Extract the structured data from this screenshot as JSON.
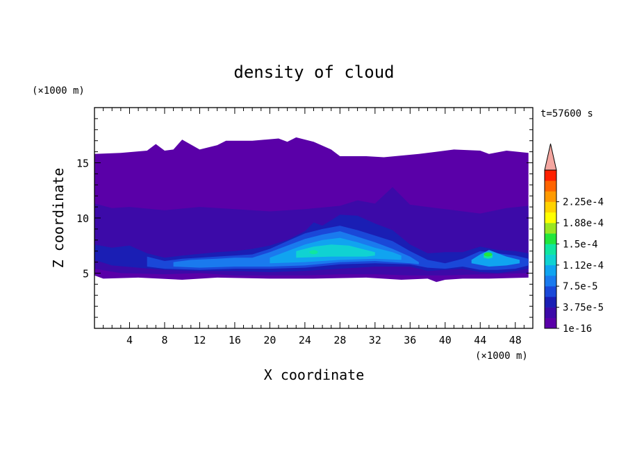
{
  "chart_data": {
    "type": "heatmap",
    "title": "density of cloud",
    "xlabel": "X coordinate",
    "ylabel": "Z coordinate",
    "x_unit": "(×1000 m)",
    "y_unit": "(×1000 m)",
    "time_label": "t=57600 s",
    "xlim": [
      0,
      50
    ],
    "ylim": [
      0,
      20
    ],
    "x_ticks": [
      4,
      8,
      12,
      16,
      20,
      24,
      28,
      32,
      36,
      40,
      44,
      48
    ],
    "y_ticks": [
      5,
      10,
      15
    ],
    "colorbar": {
      "labels": [
        "1e-16",
        "3.75e-5",
        "7.5e-5",
        "1.12e-4",
        "1.5e-4",
        "1.88e-4",
        "2.25e-4"
      ],
      "colors": [
        "#5a00a8",
        "#3c0aa8",
        "#1a1eb4",
        "#1a48d8",
        "#1a7aee",
        "#10a4f0",
        "#10d2d2",
        "#10e6a0",
        "#22e63c",
        "#9ae622",
        "#ffff00",
        "#ffd200",
        "#ff9a00",
        "#ff6400",
        "#ff2000"
      ],
      "extend_color": "#f4a6a0"
    },
    "regions": [
      {
        "level": "1e-16",
        "color": "#5a00a8",
        "top": [
          [
            0,
            15.8
          ],
          [
            3,
            15.9
          ],
          [
            6,
            16.1
          ],
          [
            7,
            16.7
          ],
          [
            8,
            16.1
          ],
          [
            9,
            16.2
          ],
          [
            10,
            17.1
          ],
          [
            12,
            16.2
          ],
          [
            14,
            16.6
          ],
          [
            15,
            17.0
          ],
          [
            18,
            17.0
          ],
          [
            21,
            17.2
          ],
          [
            22,
            16.9
          ],
          [
            23,
            17.3
          ],
          [
            25,
            16.9
          ],
          [
            27,
            16.2
          ],
          [
            28,
            15.6
          ],
          [
            31,
            15.6
          ],
          [
            33,
            15.5
          ],
          [
            37,
            15.8
          ],
          [
            39,
            16.0
          ],
          [
            41,
            16.2
          ],
          [
            44,
            16.1
          ],
          [
            45,
            15.8
          ],
          [
            47,
            16.1
          ],
          [
            49.5,
            15.9
          ]
        ],
        "bottom": [
          [
            0,
            4.8
          ],
          [
            1,
            4.5
          ],
          [
            5,
            4.6
          ],
          [
            10,
            4.4
          ],
          [
            14,
            4.6
          ],
          [
            20,
            4.5
          ],
          [
            25,
            4.5
          ],
          [
            31,
            4.6
          ],
          [
            35,
            4.4
          ],
          [
            38,
            4.5
          ],
          [
            39,
            4.2
          ],
          [
            40,
            4.4
          ],
          [
            42,
            4.5
          ],
          [
            45,
            4.5
          ],
          [
            49.5,
            4.6
          ]
        ]
      },
      {
        "level": "1.87e-5",
        "color": "#3c0aa8",
        "top": [
          [
            0,
            11.3
          ],
          [
            2,
            10.9
          ],
          [
            4,
            11.0
          ],
          [
            8,
            10.7
          ],
          [
            12,
            11.0
          ],
          [
            16,
            10.8
          ],
          [
            20,
            10.6
          ],
          [
            24,
            10.8
          ],
          [
            28,
            11.1
          ],
          [
            30,
            11.6
          ],
          [
            32,
            11.3
          ],
          [
            34,
            12.8
          ],
          [
            36,
            11.2
          ],
          [
            40,
            10.8
          ],
          [
            44,
            10.4
          ],
          [
            47,
            10.9
          ],
          [
            49.5,
            11.1
          ]
        ],
        "bottom": [
          [
            0,
            5.4
          ],
          [
            3,
            5.0
          ],
          [
            8,
            4.9
          ],
          [
            12,
            5.0
          ],
          [
            16,
            4.8
          ],
          [
            20,
            4.8
          ],
          [
            24,
            4.8
          ],
          [
            28,
            4.9
          ],
          [
            32,
            4.9
          ],
          [
            36,
            4.8
          ],
          [
            40,
            4.8
          ],
          [
            44,
            4.9
          ],
          [
            49.5,
            5.0
          ]
        ]
      },
      {
        "level": "3.75e-5",
        "color": "#1a1eb4",
        "top": [
          [
            0,
            7.6
          ],
          [
            2,
            7.3
          ],
          [
            4,
            7.5
          ],
          [
            6,
            6.8
          ],
          [
            8,
            6.4
          ],
          [
            10,
            6.6
          ],
          [
            14,
            6.9
          ],
          [
            16,
            7.0
          ],
          [
            18,
            7.2
          ],
          [
            20,
            7.5
          ],
          [
            22,
            8.0
          ],
          [
            24,
            8.8
          ],
          [
            25,
            9.6
          ],
          [
            26,
            9.3
          ],
          [
            28,
            10.3
          ],
          [
            30,
            10.2
          ],
          [
            32,
            9.5
          ],
          [
            34,
            8.9
          ],
          [
            36,
            7.6
          ],
          [
            38,
            6.8
          ],
          [
            40,
            6.9
          ],
          [
            42,
            6.9
          ],
          [
            44,
            7.4
          ],
          [
            46,
            7.1
          ],
          [
            48,
            7.0
          ],
          [
            49.5,
            6.8
          ]
        ],
        "bottom": [
          [
            0,
            6.2
          ],
          [
            2,
            5.7
          ],
          [
            5,
            5.5
          ],
          [
            8,
            5.3
          ],
          [
            12,
            5.2
          ],
          [
            16,
            5.2
          ],
          [
            20,
            5.1
          ],
          [
            24,
            5.2
          ],
          [
            28,
            5.4
          ],
          [
            32,
            5.6
          ],
          [
            36,
            5.6
          ],
          [
            38,
            5.2
          ],
          [
            40,
            5.3
          ],
          [
            42,
            5.4
          ],
          [
            44,
            5.1
          ],
          [
            46,
            5.0
          ],
          [
            48,
            5.2
          ],
          [
            49.5,
            5.4
          ]
        ]
      },
      {
        "level": "5.62e-5",
        "color": "#1a48d8",
        "top": [
          [
            6,
            6.5
          ],
          [
            8,
            6.1
          ],
          [
            10,
            6.3
          ],
          [
            14,
            6.5
          ],
          [
            16,
            6.6
          ],
          [
            18,
            6.7
          ],
          [
            20,
            7.2
          ],
          [
            22,
            7.9
          ],
          [
            24,
            8.6
          ],
          [
            26,
            9.0
          ],
          [
            28,
            9.3
          ],
          [
            30,
            8.9
          ],
          [
            32,
            8.4
          ],
          [
            34,
            7.9
          ],
          [
            36,
            7.0
          ],
          [
            38,
            6.2
          ],
          [
            40,
            5.9
          ],
          [
            42,
            6.3
          ],
          [
            44,
            7.0
          ],
          [
            46,
            6.8
          ],
          [
            48,
            6.6
          ],
          [
            49.5,
            6.3
          ]
        ],
        "bottom": [
          [
            6,
            5.6
          ],
          [
            8,
            5.4
          ],
          [
            12,
            5.3
          ],
          [
            16,
            5.4
          ],
          [
            20,
            5.4
          ],
          [
            24,
            5.5
          ],
          [
            28,
            5.8
          ],
          [
            32,
            5.9
          ],
          [
            36,
            5.8
          ],
          [
            38,
            5.5
          ],
          [
            40,
            5.4
          ],
          [
            42,
            5.6
          ],
          [
            44,
            5.3
          ],
          [
            46,
            5.3
          ],
          [
            48,
            5.4
          ],
          [
            49.5,
            5.7
          ]
        ]
      },
      {
        "level": "7.5e-5",
        "color": "#1a7aee",
        "top": [
          [
            9,
            6.0
          ],
          [
            11,
            6.2
          ],
          [
            14,
            6.3
          ],
          [
            16,
            6.4
          ],
          [
            18,
            6.4
          ],
          [
            20,
            6.9
          ],
          [
            22,
            7.5
          ],
          [
            24,
            8.1
          ],
          [
            26,
            8.5
          ],
          [
            28,
            8.8
          ],
          [
            30,
            8.3
          ],
          [
            32,
            7.8
          ],
          [
            34,
            7.2
          ],
          [
            36,
            6.5
          ],
          [
            37,
            6.0
          ]
        ],
        "bottom": [
          [
            9,
            5.6
          ],
          [
            12,
            5.5
          ],
          [
            16,
            5.6
          ],
          [
            20,
            5.6
          ],
          [
            24,
            5.7
          ],
          [
            28,
            6.0
          ],
          [
            32,
            6.1
          ],
          [
            36,
            5.9
          ],
          [
            37,
            5.8
          ]
        ]
      },
      {
        "level": "9.37e-5",
        "color": "#10a4f0",
        "top": [
          [
            20,
            6.4
          ],
          [
            22,
            7.0
          ],
          [
            24,
            7.6
          ],
          [
            26,
            8.0
          ],
          [
            28,
            8.2
          ],
          [
            30,
            7.8
          ],
          [
            32,
            7.3
          ],
          [
            34,
            6.9
          ],
          [
            35,
            6.6
          ]
        ],
        "bottom": [
          [
            20,
            5.9
          ],
          [
            24,
            6.0
          ],
          [
            28,
            6.2
          ],
          [
            32,
            6.3
          ],
          [
            35,
            6.2
          ]
        ]
      },
      {
        "level": "1.12e-4",
        "color": "#10d2d2",
        "top": [
          [
            23,
            7.0
          ],
          [
            25,
            7.4
          ],
          [
            27,
            7.6
          ],
          [
            29,
            7.5
          ],
          [
            31,
            7.1
          ],
          [
            32,
            6.9
          ]
        ],
        "bottom": [
          [
            23,
            6.4
          ],
          [
            27,
            6.5
          ],
          [
            31,
            6.5
          ],
          [
            32,
            6.6
          ]
        ]
      },
      {
        "level": "9.37e-5",
        "color": "#10a4f0",
        "top": [
          [
            43,
            6.2
          ],
          [
            44,
            6.7
          ],
          [
            45,
            7.1
          ],
          [
            46,
            6.8
          ],
          [
            47,
            6.5
          ],
          [
            48.5,
            6.2
          ]
        ],
        "bottom": [
          [
            43,
            5.9
          ],
          [
            45,
            5.6
          ],
          [
            47,
            5.7
          ],
          [
            48.5,
            5.9
          ]
        ]
      },
      {
        "level": "1.31e-4",
        "color": "#10e6a0",
        "top": [
          [
            44.4,
            6.6
          ],
          [
            44.9,
            6.9
          ],
          [
            45.4,
            6.7
          ]
        ],
        "bottom": [
          [
            44.4,
            6.4
          ],
          [
            44.9,
            6.3
          ],
          [
            45.4,
            6.4
          ]
        ]
      }
    ],
    "highlights": [
      {
        "x": 27.5,
        "z": 7.2,
        "color": "#10d2d2"
      },
      {
        "x": 30.5,
        "z": 6.9,
        "color": "#10d2d2"
      },
      {
        "x": 25.0,
        "z": 6.9,
        "color": "#10e6a0"
      },
      {
        "x": 44.9,
        "z": 6.7,
        "color": "#22e63c"
      }
    ]
  }
}
